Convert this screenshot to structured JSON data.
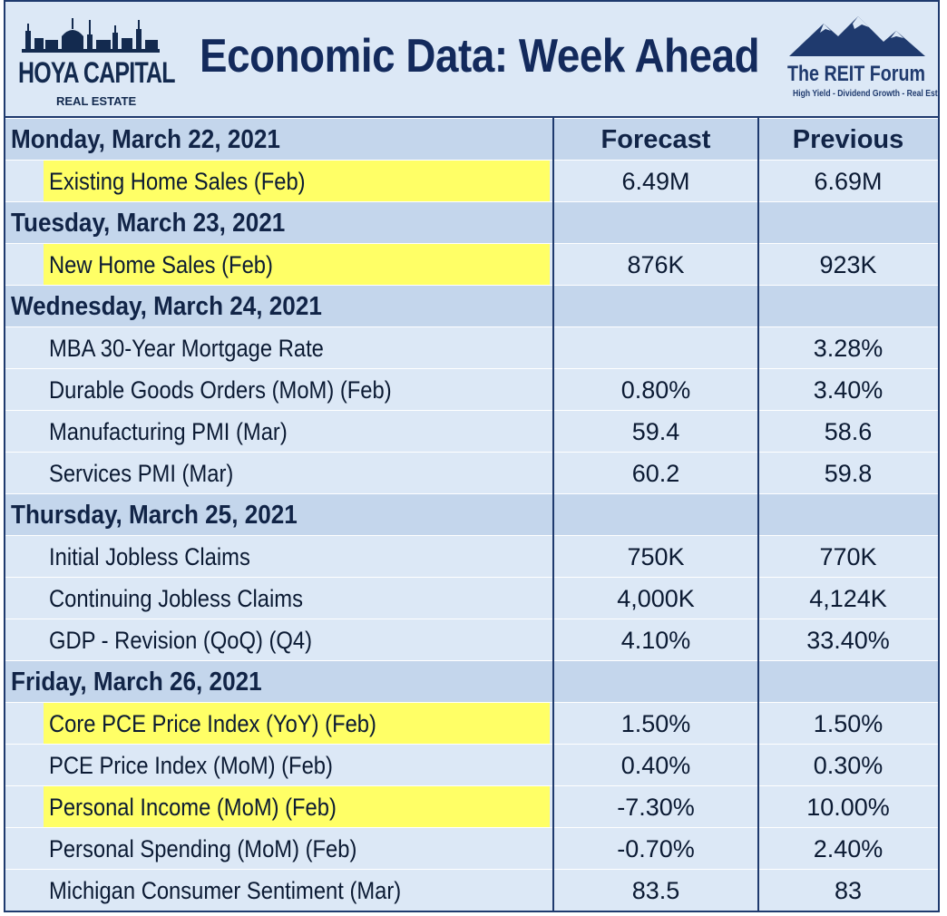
{
  "header": {
    "title": "Economic Data: Week Ahead",
    "left_logo": {
      "name": "HOYA CAPITAL",
      "sub": "REAL ESTATE"
    },
    "right_logo": {
      "name": "The REIT Forum",
      "tagline": "High Yield - Dividend Growth - Real Estate"
    }
  },
  "columns": {
    "forecast": "Forecast",
    "previous": "Previous"
  },
  "colors": {
    "navy": "#1f3a6e",
    "day_row": "#c4d6ec",
    "row": "#dce8f6",
    "highlight": "#ffff66"
  },
  "rows": [
    {
      "type": "day",
      "label": "Monday, March 22, 2021",
      "forecast": "Forecast",
      "previous": "Previous"
    },
    {
      "type": "item",
      "label": "Existing Home Sales (Feb)",
      "forecast": "6.49M",
      "previous": "6.69M",
      "highlight": true
    },
    {
      "type": "day",
      "label": "Tuesday, March 23, 2021",
      "forecast": "",
      "previous": ""
    },
    {
      "type": "item",
      "label": "New Home Sales (Feb)",
      "forecast": "876K",
      "previous": "923K",
      "highlight": true
    },
    {
      "type": "day",
      "label": "Wednesday, March 24, 2021",
      "forecast": "",
      "previous": ""
    },
    {
      "type": "item",
      "label": "MBA 30-Year Mortgage Rate",
      "forecast": "",
      "previous": "3.28%",
      "highlight": false
    },
    {
      "type": "item",
      "label": "Durable Goods Orders (MoM) (Feb)",
      "forecast": "0.80%",
      "previous": "3.40%",
      "highlight": false
    },
    {
      "type": "item",
      "label": "Manufacturing PMI (Mar)",
      "forecast": "59.4",
      "previous": "58.6",
      "highlight": false
    },
    {
      "type": "item",
      "label": "Services PMI (Mar)",
      "forecast": "60.2",
      "previous": "59.8",
      "highlight": false
    },
    {
      "type": "day",
      "label": "Thursday, March 25, 2021",
      "forecast": "",
      "previous": ""
    },
    {
      "type": "item",
      "label": "Initial Jobless Claims",
      "forecast": "750K",
      "previous": "770K",
      "highlight": false
    },
    {
      "type": "item",
      "label": "Continuing Jobless Claims",
      "forecast": "4,000K",
      "previous": "4,124K",
      "highlight": false
    },
    {
      "type": "item",
      "label": "GDP - Revision (QoQ) (Q4)",
      "forecast": "4.10%",
      "previous": "33.40%",
      "highlight": false
    },
    {
      "type": "day",
      "label": "Friday, March 26, 2021",
      "forecast": "",
      "previous": ""
    },
    {
      "type": "item",
      "label": "Core PCE Price Index (YoY) (Feb)",
      "forecast": "1.50%",
      "previous": "1.50%",
      "highlight": true
    },
    {
      "type": "item",
      "label": "PCE Price Index (MoM) (Feb)",
      "forecast": "0.40%",
      "previous": "0.30%",
      "highlight": false
    },
    {
      "type": "item",
      "label": "Personal Income (MoM) (Feb)",
      "forecast": "-7.30%",
      "previous": "10.00%",
      "highlight": true
    },
    {
      "type": "item",
      "label": "Personal Spending (MoM) (Feb)",
      "forecast": "-0.70%",
      "previous": "2.40%",
      "highlight": false
    },
    {
      "type": "item",
      "label": "Michigan Consumer Sentiment (Mar)",
      "forecast": "83.5",
      "previous": "83",
      "highlight": false
    }
  ]
}
